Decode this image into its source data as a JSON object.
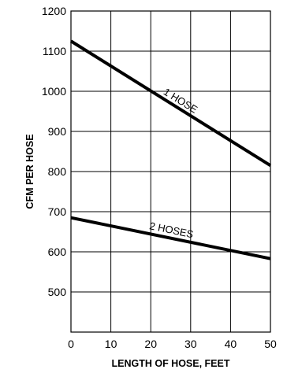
{
  "chart_data": {
    "type": "line",
    "xlabel": "LENGTH OF HOSE, FEET",
    "ylabel": "CFM PER HOSE",
    "xlim": [
      0,
      50
    ],
    "ylim": [
      400,
      1200
    ],
    "x_ticks": [
      0,
      10,
      20,
      30,
      40,
      50
    ],
    "y_ticks": [
      500,
      600,
      700,
      800,
      900,
      1000,
      1100,
      1200
    ],
    "grid": true,
    "legend": "none",
    "series": [
      {
        "name": "1 HOSE",
        "x": [
          0,
          50
        ],
        "y": [
          1125,
          815
        ]
      },
      {
        "name": "2 HOSES",
        "x": [
          0,
          50
        ],
        "y": [
          685,
          583
        ]
      }
    ]
  }
}
